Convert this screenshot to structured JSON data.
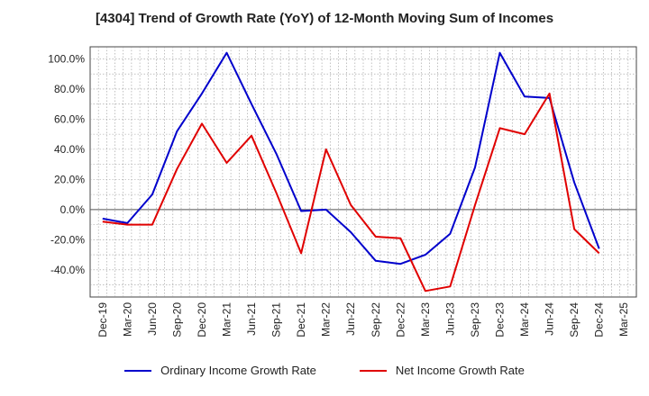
{
  "chart_data": {
    "type": "line",
    "title": "[4304]  Trend of Growth Rate (YoY) of 12-Month Moving Sum of Incomes",
    "x": [
      "Dec-19",
      "Mar-20",
      "Jun-20",
      "Sep-20",
      "Dec-20",
      "Mar-21",
      "Jun-21",
      "Sep-21",
      "Dec-21",
      "Mar-22",
      "Jun-22",
      "Sep-22",
      "Dec-22",
      "Mar-23",
      "Jun-23",
      "Sep-23",
      "Dec-23",
      "Mar-24",
      "Jun-24",
      "Sep-24",
      "Dec-24",
      "Mar-25"
    ],
    "series": [
      {
        "name": "Ordinary Income Growth Rate",
        "color": "#0000cc",
        "values": [
          -6,
          -9,
          10,
          52,
          77,
          104,
          70,
          37,
          -1,
          0,
          -15,
          -34,
          -36,
          -30,
          -16,
          28,
          104,
          75,
          74,
          18,
          -26,
          null
        ]
      },
      {
        "name": "Net Income Growth Rate",
        "color": "#e00000",
        "values": [
          -8,
          -10,
          -10,
          27,
          57,
          31,
          49,
          11,
          -29,
          40,
          3,
          -18,
          -19,
          -54,
          -51,
          3,
          54,
          50,
          77,
          -13,
          -29,
          null
        ]
      }
    ],
    "y_ticks": [
      "100.0%",
      "80.0%",
      "60.0%",
      "40.0%",
      "20.0%",
      "0.0%",
      "-20.0%",
      "-40.0%"
    ],
    "ylim": [
      -58,
      108
    ],
    "grid": true,
    "legend": "bottom"
  }
}
